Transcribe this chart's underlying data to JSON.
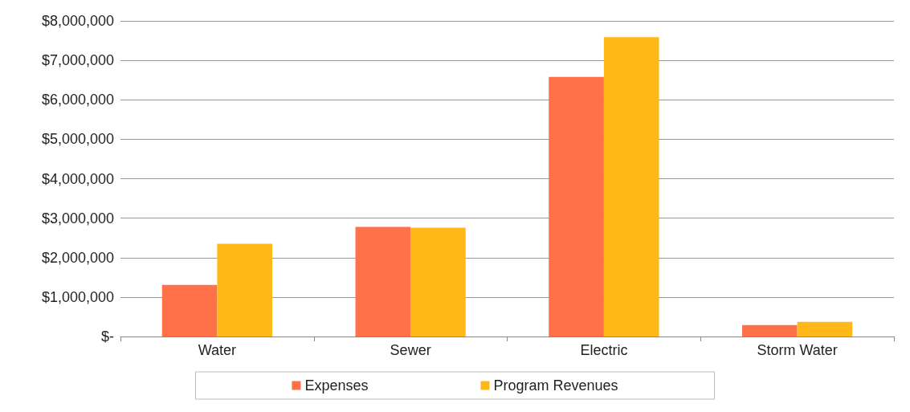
{
  "chart_data": {
    "type": "bar",
    "categories": [
      "Water",
      "Sewer",
      "Electric",
      "Storm Water"
    ],
    "series": [
      {
        "name": "Expenses",
        "color": "#ff7149",
        "values": [
          1310000,
          2780000,
          6580000,
          290000
        ]
      },
      {
        "name": "Program Revenues",
        "color": "#ffb818",
        "values": [
          2350000,
          2760000,
          7590000,
          370000
        ]
      }
    ],
    "ylim": [
      0,
      8000000
    ],
    "yticks": [
      {
        "value": 0,
        "label": "$-"
      },
      {
        "value": 1000000,
        "label": "$1,000,000"
      },
      {
        "value": 2000000,
        "label": "$2,000,000"
      },
      {
        "value": 3000000,
        "label": "$3,000,000"
      },
      {
        "value": 4000000,
        "label": "$4,000,000"
      },
      {
        "value": 5000000,
        "label": "$5,000,000"
      },
      {
        "value": 6000000,
        "label": "$6,000,000"
      },
      {
        "value": 7000000,
        "label": "$7,000,000"
      },
      {
        "value": 8000000,
        "label": "$8,000,000"
      }
    ],
    "grid": "y",
    "legend": "bottom"
  }
}
